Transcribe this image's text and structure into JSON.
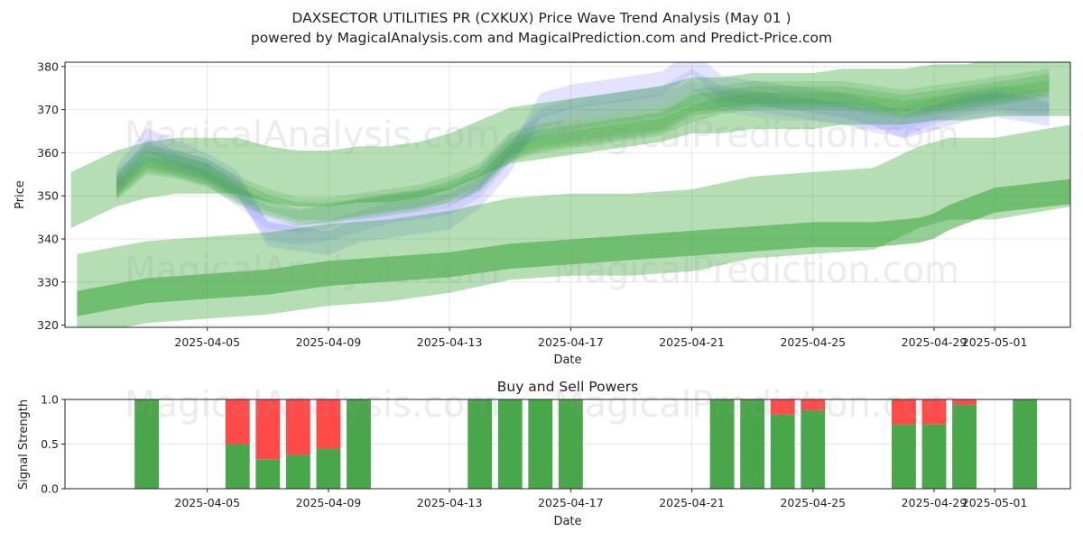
{
  "chart_data": [
    {
      "type": "area",
      "title_line1": "DAXSECTOR UTILITIES PR (CXKUX) Price Wave Trend Analysis (May 01 )",
      "title_line2": "powered by MagicalAnalysis.com and MagicalPrediction.com and Predict-Price.com",
      "xlabel": "Date",
      "ylabel": "Price",
      "ylim": [
        319.5,
        381
      ],
      "y_ticks": [
        320,
        330,
        340,
        350,
        360,
        370,
        380
      ],
      "x_ticks": [
        {
          "day": 4,
          "label": "2025-04-05"
        },
        {
          "day": 8,
          "label": "2025-04-09"
        },
        {
          "day": 12,
          "label": "2025-04-13"
        },
        {
          "day": 16,
          "label": "2025-04-17"
        },
        {
          "day": 20,
          "label": "2025-04-21"
        },
        {
          "day": 24,
          "label": "2025-04-25"
        },
        {
          "day": 28,
          "label": "2025-04-29"
        },
        {
          "day": 30,
          "label": "2025-05-01"
        }
      ],
      "x_range_days": [
        -0.7,
        32.5
      ],
      "watermarks": [
        "MagicalAnalysis.com",
        "MagicalPrediction.com"
      ],
      "series": [
        {
          "name": "blue-wave-1",
          "color": "#6666ff",
          "opacity": 0.18,
          "halfwidth": 2.8,
          "x": [
            1,
            2,
            3,
            4,
            5,
            6,
            7,
            8,
            9,
            10,
            11,
            12,
            13,
            14,
            15,
            16,
            17,
            18,
            19,
            20,
            21,
            22,
            23,
            24,
            25,
            26,
            27,
            28,
            29,
            30,
            31,
            31.8
          ],
          "y": [
            354,
            363,
            360,
            357,
            353,
            341,
            340,
            339,
            342,
            343,
            344,
            345,
            350,
            358,
            371,
            373,
            374,
            375,
            376,
            381,
            375,
            374,
            373,
            372,
            371,
            369,
            366,
            368,
            370,
            371,
            370,
            369
          ]
        },
        {
          "name": "blue-wave-2",
          "color": "#6666ff",
          "opacity": 0.15,
          "halfwidth": 2.4,
          "x": [
            1,
            2,
            3,
            4,
            5,
            6,
            7,
            8,
            9,
            10,
            11,
            12,
            13,
            14,
            15,
            16,
            17,
            18,
            19,
            20,
            21,
            22,
            23,
            24,
            25,
            26,
            27,
            28,
            29,
            30,
            31,
            31.8
          ],
          "y": [
            352,
            361,
            358,
            356,
            352,
            342,
            341,
            342,
            344,
            346,
            347,
            348,
            352,
            360,
            368,
            370,
            371,
            372,
            373,
            377,
            373,
            372,
            371,
            370,
            369,
            367,
            366,
            369,
            371,
            372,
            371,
            371
          ]
        },
        {
          "name": "blue-wave-3",
          "color": "#6666ff",
          "opacity": 0.12,
          "halfwidth": 2.6,
          "x": [
            1,
            2,
            3,
            4,
            5,
            6,
            7,
            8,
            9,
            10,
            11,
            12,
            13,
            14,
            15,
            16,
            17,
            18,
            19,
            20,
            21,
            22,
            23,
            24,
            25,
            26,
            27,
            28,
            29,
            30,
            31,
            31.8
          ],
          "y": [
            353,
            360,
            357,
            355,
            350,
            345,
            344,
            345,
            347,
            348,
            349,
            350,
            354,
            362,
            366,
            368,
            369,
            370,
            371,
            374,
            372,
            371,
            370,
            370,
            369,
            368,
            368,
            370,
            372,
            373,
            372,
            372
          ]
        },
        {
          "name": "green-wave-1",
          "color": "#2ca02c",
          "opacity": 0.2,
          "halfwidth": 2.4,
          "x": [
            1,
            2,
            3,
            4,
            5,
            6,
            7,
            8,
            9,
            10,
            11,
            12,
            13,
            14,
            15,
            16,
            17,
            18,
            19,
            20,
            21,
            22,
            23,
            24,
            25,
            26,
            27,
            28,
            29,
            30,
            31,
            31.8
          ],
          "y": [
            352,
            358,
            357,
            355,
            351,
            348,
            346,
            346,
            347,
            348,
            349,
            351,
            354,
            361,
            363,
            364,
            365,
            366,
            367,
            371,
            372,
            373,
            373,
            373,
            373,
            372,
            371,
            372,
            373,
            374,
            375,
            376
          ]
        },
        {
          "name": "green-wave-2",
          "color": "#2ca02c",
          "opacity": 0.2,
          "halfwidth": 2.0,
          "x": [
            1,
            2,
            3,
            4,
            5,
            6,
            7,
            8,
            9,
            10,
            11,
            12,
            13,
            14,
            15,
            16,
            17,
            18,
            19,
            20,
            21,
            22,
            23,
            24,
            25,
            26,
            27,
            28,
            29,
            30,
            31,
            31.8
          ],
          "y": [
            351,
            357,
            356,
            354,
            350,
            347,
            345,
            346,
            347,
            348,
            349,
            350,
            353,
            360,
            362,
            363,
            364,
            365,
            366,
            369,
            371,
            372,
            372,
            372,
            372,
            371,
            370,
            371,
            372,
            373,
            374,
            375
          ]
        },
        {
          "name": "green-wave-3",
          "color": "#2ca02c",
          "opacity": 0.18,
          "halfwidth": 2.6,
          "x": [
            1,
            2,
            3,
            4,
            5,
            6,
            7,
            8,
            9,
            10,
            11,
            12,
            13,
            14,
            15,
            16,
            17,
            18,
            19,
            20,
            21,
            22,
            23,
            24,
            25,
            26,
            27,
            28,
            29,
            30,
            31,
            31.8
          ],
          "y": [
            353,
            359,
            358,
            356,
            352,
            349,
            347,
            347,
            348,
            349,
            350,
            352,
            355,
            362,
            364,
            365,
            366,
            367,
            368,
            372,
            373,
            374,
            374,
            374,
            374,
            373,
            372,
            373,
            374,
            375,
            376,
            377
          ]
        },
        {
          "name": "green-trend-wide",
          "color": "#2ca02c",
          "opacity": 0.35,
          "halfwidth": 6.5,
          "x": [
            -0.5,
            1,
            2,
            3,
            4,
            5,
            6,
            7,
            8,
            9,
            10,
            11,
            12,
            13,
            14,
            15,
            16,
            17,
            18,
            19,
            20,
            21,
            22,
            23,
            24,
            25,
            26,
            27,
            28,
            29,
            30,
            31,
            32.5
          ],
          "y": [
            349,
            354,
            356,
            357,
            357,
            357,
            355,
            354,
            354,
            355,
            355,
            356,
            358,
            361,
            364,
            365,
            366,
            367,
            368,
            369,
            371,
            371,
            372,
            372,
            372,
            373,
            373,
            373,
            374,
            374,
            375,
            375,
            375
          ]
        },
        {
          "name": "green-low-band",
          "color": "#2ca02c",
          "opacity": 0.35,
          "halfwidth": 9.5,
          "x": [
            -0.3,
            2,
            4,
            6,
            8,
            10,
            12,
            14,
            16,
            18,
            20,
            22,
            24,
            26,
            27.5,
            28.5,
            30,
            32.5
          ],
          "y": [
            327,
            330,
            331,
            332,
            334,
            335,
            337,
            340,
            341,
            341,
            342,
            345,
            346,
            347,
            352,
            354,
            354,
            357
          ]
        },
        {
          "name": "green-low-core",
          "color": "#2ca02c",
          "opacity": 0.5,
          "halfwidth": 2.9,
          "x": [
            -0.3,
            2,
            4,
            6,
            8,
            10,
            12,
            14,
            16,
            18,
            20,
            22,
            24,
            26,
            27.5,
            28,
            28.5,
            30,
            32.5
          ],
          "y": [
            325,
            328,
            329,
            330,
            332,
            333,
            334,
            336,
            337,
            338,
            339,
            340,
            341,
            341,
            342,
            343,
            345,
            349,
            351
          ]
        }
      ]
    },
    {
      "type": "bar",
      "title": "Buy and Sell Powers",
      "xlabel": "Date",
      "ylabel": "Signal Strength",
      "ylim": [
        0,
        1
      ],
      "y_ticks": [
        "0.0",
        "0.5",
        "1.0"
      ],
      "x_ticks": [
        {
          "day": 4,
          "label": "2025-04-05"
        },
        {
          "day": 8,
          "label": "2025-04-09"
        },
        {
          "day": 12,
          "label": "2025-04-13"
        },
        {
          "day": 16,
          "label": "2025-04-17"
        },
        {
          "day": 20,
          "label": "2025-04-21"
        },
        {
          "day": 24,
          "label": "2025-04-25"
        },
        {
          "day": 28,
          "label": "2025-04-29"
        },
        {
          "day": 30,
          "label": "2025-05-01"
        }
      ],
      "x_range_days": [
        -0.7,
        32.5
      ],
      "buy_color": "#4aa64a",
      "sell_color": "#ff4a4a",
      "watermarks": [
        "MagicalAnalysis.com",
        "MagicalPrediction.com"
      ],
      "bars": [
        {
          "day": 2,
          "buy": 1.0,
          "sell": 0.0
        },
        {
          "day": 5,
          "buy": 0.5,
          "sell": 0.5
        },
        {
          "day": 6,
          "buy": 0.33,
          "sell": 0.67
        },
        {
          "day": 7,
          "buy": 0.38,
          "sell": 0.62
        },
        {
          "day": 8,
          "buy": 0.45,
          "sell": 0.55
        },
        {
          "day": 9,
          "buy": 1.0,
          "sell": 0.0
        },
        {
          "day": 13,
          "buy": 1.0,
          "sell": 0.0
        },
        {
          "day": 14,
          "buy": 1.0,
          "sell": 0.0
        },
        {
          "day": 15,
          "buy": 1.0,
          "sell": 0.0
        },
        {
          "day": 16,
          "buy": 1.0,
          "sell": 0.0
        },
        {
          "day": 21,
          "buy": 1.0,
          "sell": 0.0
        },
        {
          "day": 22,
          "buy": 1.0,
          "sell": 0.0
        },
        {
          "day": 23,
          "buy": 0.83,
          "sell": 0.17
        },
        {
          "day": 24,
          "buy": 0.88,
          "sell": 0.12
        },
        {
          "day": 27,
          "buy": 0.72,
          "sell": 0.28
        },
        {
          "day": 28,
          "buy": 0.72,
          "sell": 0.28
        },
        {
          "day": 29,
          "buy": 0.94,
          "sell": 0.06
        },
        {
          "day": 31,
          "buy": 1.0,
          "sell": 0.0
        }
      ]
    }
  ]
}
